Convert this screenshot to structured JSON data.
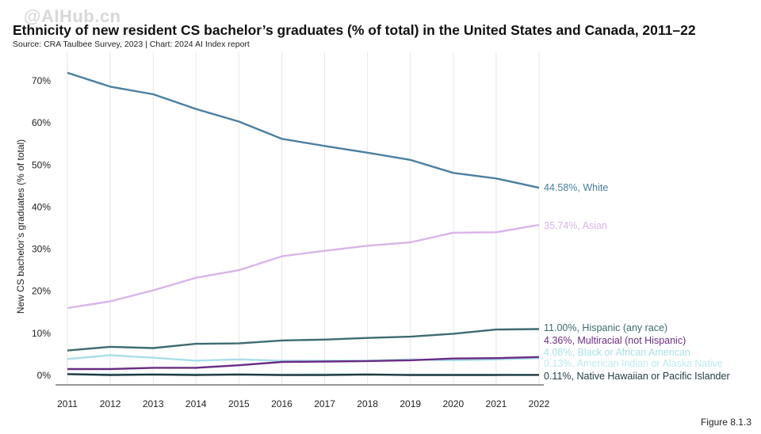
{
  "watermark": "@AIHub.cn",
  "title": "Ethnicity of new resident CS bachelor’s graduates (% of total) in the United States and Canada, 2011–22",
  "source": "Source: CRA Taulbee Survey, 2023 | Chart: 2024 AI Index report",
  "figure_label": "Figure 8.1.3",
  "chart_data": {
    "type": "line",
    "title": "Ethnicity of new resident CS bachelor’s graduates (% of total) in the United States and Canada, 2011–22",
    "xlabel": "",
    "ylabel": "New CS bachelor’s graduates (% of total)",
    "x": [
      2011,
      2012,
      2013,
      2014,
      2015,
      2016,
      2017,
      2018,
      2019,
      2020,
      2021,
      2022
    ],
    "ylim": [
      0,
      73
    ],
    "yticks": [
      0,
      10,
      20,
      30,
      40,
      50,
      60,
      70
    ],
    "ytick_labels": [
      "0%",
      "10%",
      "20%",
      "30%",
      "40%",
      "50%",
      "60%",
      "70%"
    ],
    "grid": "vertical",
    "series": [
      {
        "name": "White",
        "end_label": "44.58%, White",
        "color": "#4a7fa0",
        "values": [
          71.9,
          68.6,
          66.8,
          63.3,
          60.3,
          56.2,
          54.5,
          52.9,
          51.2,
          48.1,
          46.8,
          44.58
        ]
      },
      {
        "name": "Asian",
        "end_label": "35.74%, Asian",
        "color": "#d9b4ea",
        "values": [
          16.0,
          17.6,
          20.2,
          23.2,
          25.0,
          28.3,
          29.6,
          30.8,
          31.6,
          33.9,
          34.0,
          35.74
        ]
      },
      {
        "name": "Hispanic (any race)",
        "end_label": "11.00%, Hispanic (any race)",
        "color": "#3e6b72",
        "values": [
          5.9,
          6.8,
          6.5,
          7.5,
          7.6,
          8.3,
          8.5,
          8.9,
          9.2,
          9.9,
          10.9,
          11.0
        ]
      },
      {
        "name": "Multiracial (not Hispanic)",
        "end_label": "4.36%, Multiracial (not Hispanic)",
        "color": "#6a2c84",
        "values": [
          1.5,
          1.5,
          1.8,
          1.8,
          2.4,
          3.2,
          3.3,
          3.4,
          3.6,
          4.0,
          4.1,
          4.36
        ]
      },
      {
        "name": "Black or African American",
        "end_label": "4.08%, Black or African American",
        "color": "#a8dfe8",
        "values": [
          3.9,
          4.8,
          4.2,
          3.5,
          3.8,
          3.5,
          3.5,
          3.5,
          3.8,
          3.6,
          3.8,
          4.08
        ]
      },
      {
        "name": "American Indian or Alaska Native",
        "end_label": "0.13%, American Indian or Alaska Native",
        "color": "#bfe9ef",
        "values": [
          0.4,
          0.3,
          0.3,
          0.3,
          0.3,
          0.2,
          0.3,
          0.3,
          0.2,
          0.2,
          0.2,
          0.13
        ]
      },
      {
        "name": "Native Hawaiian or Pacific Islander",
        "end_label": "0.11%, Native Hawaiian or Pacific Islander",
        "color": "#1f3a40",
        "values": [
          0.3,
          0.1,
          0.2,
          0.1,
          0.2,
          0.1,
          0.1,
          0.2,
          0.1,
          0.1,
          0.1,
          0.11
        ]
      }
    ]
  }
}
